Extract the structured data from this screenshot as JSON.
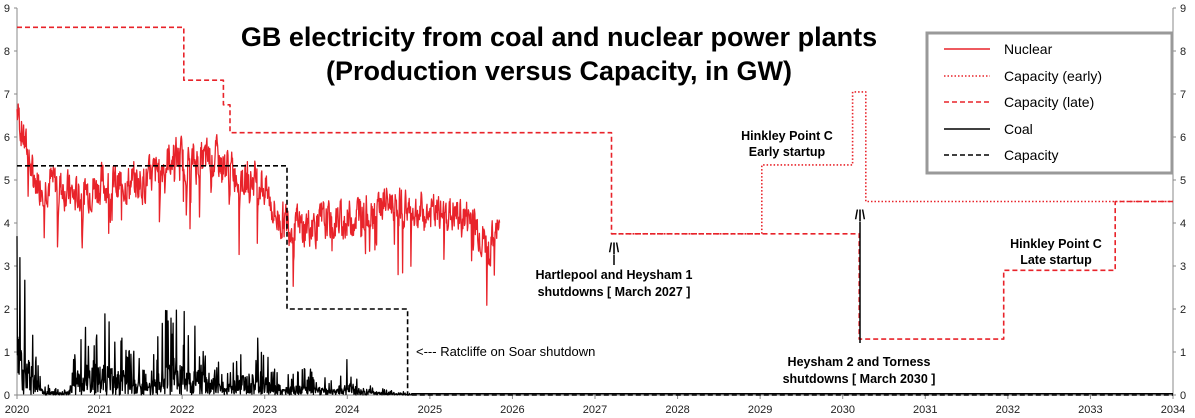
{
  "chart_data": {
    "type": "line",
    "title_line1": "GB electricity from coal and nuclear power plants",
    "title_line2": "(Production versus Capacity, in GW)",
    "xlim": [
      2020,
      2034
    ],
    "ylim": [
      0,
      9
    ],
    "x_ticks": [
      "2020",
      "2021",
      "2022",
      "2023",
      "2024",
      "2025",
      "2026",
      "2027",
      "2028",
      "2029",
      "2030",
      "2031",
      "2032",
      "2033",
      "2034"
    ],
    "y_ticks": [
      "0",
      "1",
      "2",
      "3",
      "4",
      "5",
      "6",
      "7",
      "8",
      "9"
    ],
    "grid": false,
    "legend_position": "top-right",
    "colors": {
      "nuclear": "#e8232a",
      "coal": "#000000"
    },
    "legend": [
      "Nuclear",
      "Capacity (early)",
      "Capacity (late)",
      "Coal",
      "Capacity"
    ],
    "series": [
      {
        "name": "Nuclear",
        "style": "solid",
        "color": "#e8232a",
        "x_start": 2020.0,
        "x_end": 2025.85,
        "noise_seed": 7,
        "trend": [
          [
            2020.0,
            6.6
          ],
          [
            2020.2,
            5.0
          ],
          [
            2020.5,
            4.9
          ],
          [
            2020.7,
            4.6
          ],
          [
            2021.0,
            4.9
          ],
          [
            2021.3,
            4.9
          ],
          [
            2021.6,
            5.0
          ],
          [
            2021.9,
            5.6
          ],
          [
            2022.1,
            5.4
          ],
          [
            2022.4,
            5.5
          ],
          [
            2022.7,
            5.1
          ],
          [
            2022.95,
            5.0
          ],
          [
            2023.15,
            4.1
          ],
          [
            2023.4,
            3.9
          ],
          [
            2023.7,
            4.0
          ],
          [
            2024.0,
            4.1
          ],
          [
            2024.3,
            4.4
          ],
          [
            2024.6,
            4.5
          ],
          [
            2024.9,
            4.2
          ],
          [
            2025.2,
            4.2
          ],
          [
            2025.5,
            4.1
          ],
          [
            2025.7,
            3.4
          ],
          [
            2025.85,
            3.9
          ]
        ]
      },
      {
        "name": "Capacity (late)",
        "style": "dashed",
        "color": "#e8232a",
        "points": [
          [
            2020.0,
            8.55
          ],
          [
            2022.02,
            8.55
          ],
          [
            2022.02,
            7.32
          ],
          [
            2022.5,
            7.32
          ],
          [
            2022.5,
            6.75
          ],
          [
            2022.58,
            6.75
          ],
          [
            2022.58,
            6.1
          ],
          [
            2027.2,
            6.1
          ],
          [
            2027.2,
            3.75
          ],
          [
            2030.2,
            3.75
          ],
          [
            2030.2,
            1.3
          ],
          [
            2031.95,
            1.3
          ],
          [
            2031.95,
            2.9
          ],
          [
            2033.3,
            2.9
          ],
          [
            2033.3,
            4.5
          ],
          [
            2034.0,
            4.5
          ]
        ]
      },
      {
        "name": "Capacity (early)",
        "style": "dotted",
        "color": "#e8232a",
        "points": [
          [
            2027.2,
            3.75
          ],
          [
            2029.02,
            3.75
          ],
          [
            2029.02,
            5.35
          ],
          [
            2030.12,
            5.35
          ],
          [
            2030.12,
            7.05
          ],
          [
            2030.28,
            7.05
          ],
          [
            2030.28,
            4.5
          ],
          [
            2034.0,
            4.5
          ]
        ]
      },
      {
        "name": "Coal",
        "style": "solid",
        "color": "#000000",
        "x_start": 2020.0,
        "x_end": 2024.78,
        "noise_seed": 3,
        "trend": [
          [
            2020.0,
            1.8
          ],
          [
            2020.15,
            1.0
          ],
          [
            2020.3,
            0.15
          ],
          [
            2020.6,
            0.05
          ],
          [
            2020.7,
            0.55
          ],
          [
            2021.0,
            1.0
          ],
          [
            2021.3,
            0.6
          ],
          [
            2021.6,
            0.3
          ],
          [
            2021.8,
            0.9
          ],
          [
            2022.0,
            0.9
          ],
          [
            2022.3,
            0.7
          ],
          [
            2022.5,
            0.2
          ],
          [
            2022.8,
            0.7
          ],
          [
            2023.0,
            0.6
          ],
          [
            2023.2,
            0.2
          ],
          [
            2023.5,
            0.3
          ],
          [
            2023.8,
            0.15
          ],
          [
            2024.0,
            0.4
          ],
          [
            2024.2,
            0.15
          ],
          [
            2024.5,
            0.05
          ],
          [
            2024.78,
            0.03
          ]
        ],
        "tail": [
          [
            2024.78,
            0.03
          ],
          [
            2034.0,
            0.03
          ]
        ]
      },
      {
        "name": "Capacity",
        "style": "dashed",
        "color": "#000000",
        "points": [
          [
            2020.0,
            5.33
          ],
          [
            2023.27,
            5.33
          ],
          [
            2023.27,
            2.0
          ],
          [
            2024.73,
            2.0
          ],
          [
            2024.73,
            0.0
          ],
          [
            2034.0,
            0.0
          ]
        ]
      }
    ],
    "annotations": [
      {
        "id": "hartlepool",
        "lines": [
          "Hartlepool and Heysham 1",
          "shutdowns [ March 2027 ]"
        ],
        "marker": "/|\\",
        "x": 2027.2
      },
      {
        "id": "heysham2",
        "lines": [
          "Heysham 2 and Torness",
          "shutdowns [ March 2030 ]"
        ],
        "marker": "/|\\",
        "x": 2030.2
      },
      {
        "id": "hinkley-early",
        "lines": [
          "Hinkley Point C",
          "Early startup"
        ]
      },
      {
        "id": "hinkley-late",
        "lines": [
          "Hinkley Point C",
          "Late startup"
        ]
      },
      {
        "id": "ratcliffe",
        "lines": [
          "<--- Ratcliffe on Soar shutdown"
        ]
      }
    ]
  }
}
